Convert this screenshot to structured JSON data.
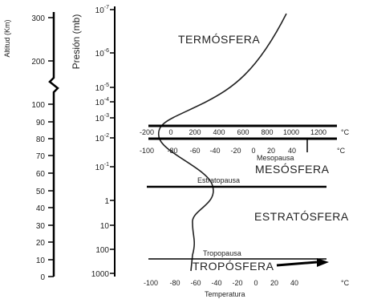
{
  "altitude_axis": {
    "title": "Altitud (Km)",
    "ticks": [
      "300",
      "200",
      "100",
      "90",
      "80",
      "70",
      "60",
      "50",
      "40",
      "30",
      "20",
      "10",
      "0"
    ]
  },
  "pressure_axis": {
    "title": "Presión (mb)",
    "ticks": [
      {
        "base": "10",
        "exp": "-7"
      },
      {
        "base": "10",
        "exp": "-6"
      },
      {
        "base": "10",
        "exp": "-5"
      },
      {
        "base": "10",
        "exp": "-4"
      },
      {
        "base": "10",
        "exp": "-3"
      },
      {
        "base": "10",
        "exp": "-2"
      },
      {
        "base": "10",
        "exp": "-1"
      },
      {
        "base": "1",
        "exp": ""
      },
      {
        "base": "10",
        "exp": ""
      },
      {
        "base": "100",
        "exp": ""
      },
      {
        "base": "1000",
        "exp": ""
      }
    ]
  },
  "regions": {
    "thermosphere": "TERMÓSFERA",
    "mesosphere": "MESÓSFERA",
    "stratosphere": "ESTRATÓSFERA",
    "troposphere": "TROPÓSFERA"
  },
  "boundaries": {
    "mesopause": "Mesopausa",
    "stratopause": "Estratopausa",
    "tropopause": "Tropopausa"
  },
  "temperature_scales": {
    "upper": [
      "-200",
      "0",
      "200",
      "400",
      "600",
      "800",
      "1000",
      "1200"
    ],
    "middle": [
      "-100",
      "-80",
      "-60",
      "-40",
      "-20",
      "0",
      "20",
      "40"
    ],
    "bottom": [
      "-100",
      "-80",
      "-60",
      "-40",
      "-20",
      "0",
      "20",
      "40"
    ],
    "unit": "°C",
    "title": "Temperatura"
  }
}
